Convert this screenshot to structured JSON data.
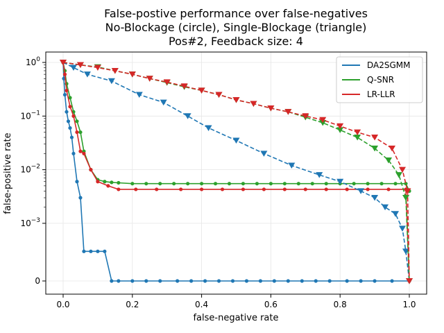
{
  "chart_data": {
    "type": "line",
    "title": [
      "False-postive performance over false-negatives",
      "No-Blockage (circle), Single-Blockage (triangle)",
      "Pos#2, Feedback size: 4"
    ],
    "xlabel": "false-negative rate",
    "ylabel": "false-positive rate",
    "xlim": [
      -0.05,
      1.05
    ],
    "yscale": "symlog",
    "x_ticks": [
      0.0,
      0.2,
      0.4,
      0.6,
      0.8,
      1.0
    ],
    "x_tick_labels": [
      "0.0",
      "0.2",
      "0.4",
      "0.6",
      "0.8",
      "1.0"
    ],
    "y_tick_labels": [
      {
        "value": 1,
        "base": "10",
        "exp": "0"
      },
      {
        "value": 0.1,
        "base": "10",
        "exp": "−1"
      },
      {
        "value": 0.01,
        "base": "10",
        "exp": "−2"
      },
      {
        "value": 0.001,
        "base": "10",
        "exp": "−3"
      },
      {
        "value": 0,
        "plain": "0"
      }
    ],
    "grid": true,
    "legend_position": "top-right",
    "series": [
      {
        "name": "DA2SGMM",
        "color": "#1f77b4",
        "marker": "circle",
        "linestyle": "solid",
        "x": [
          0.0,
          0.002,
          0.005,
          0.01,
          0.015,
          0.02,
          0.025,
          0.03,
          0.04,
          0.05,
          0.06,
          0.08,
          0.1,
          0.12,
          0.14,
          0.16,
          0.2,
          0.24,
          0.28,
          0.33,
          0.37,
          0.41,
          0.45,
          0.49,
          0.53,
          0.57,
          0.61,
          0.65,
          0.69,
          0.73,
          0.77,
          0.82,
          0.86,
          0.9,
          0.95,
          1.0
        ],
        "y": [
          1.0,
          0.5,
          0.25,
          0.12,
          0.08,
          0.06,
          0.04,
          0.02,
          0.006,
          0.003,
          0.0003,
          0.0003,
          0.0003,
          0.0003,
          0.0001,
          0,
          0,
          0,
          0,
          0,
          0,
          0,
          0,
          0,
          0,
          0,
          0,
          0,
          0,
          0,
          0,
          0,
          0,
          0,
          0,
          0
        ]
      },
      {
        "name": "Q-SNR",
        "color": "#2ca02c",
        "marker": "circle",
        "linestyle": "solid",
        "x": [
          0.0,
          0.005,
          0.01,
          0.02,
          0.03,
          0.04,
          0.05,
          0.06,
          0.08,
          0.1,
          0.12,
          0.14,
          0.16,
          0.2,
          0.24,
          0.28,
          0.32,
          0.36,
          0.4,
          0.44,
          0.48,
          0.52,
          0.56,
          0.6,
          0.64,
          0.68,
          0.72,
          0.76,
          0.8,
          0.84,
          0.88,
          0.92,
          0.96,
          0.99,
          1.0
        ],
        "y": [
          1.0,
          0.7,
          0.4,
          0.22,
          0.12,
          0.08,
          0.05,
          0.022,
          0.01,
          0.0065,
          0.006,
          0.0058,
          0.0057,
          0.0055,
          0.0055,
          0.0055,
          0.0055,
          0.0055,
          0.0055,
          0.0055,
          0.0055,
          0.0055,
          0.0055,
          0.0055,
          0.0055,
          0.0055,
          0.0055,
          0.0055,
          0.0055,
          0.0055,
          0.0055,
          0.0055,
          0.0055,
          0.0055,
          0.004
        ]
      },
      {
        "name": "LR-LLR",
        "color": "#d62728",
        "marker": "circle",
        "linestyle": "solid",
        "x": [
          0.0,
          0.005,
          0.01,
          0.02,
          0.03,
          0.04,
          0.05,
          0.06,
          0.08,
          0.1,
          0.13,
          0.16,
          0.21,
          0.27,
          0.34,
          0.4,
          0.46,
          0.52,
          0.58,
          0.64,
          0.7,
          0.76,
          0.82,
          0.88,
          0.94,
          0.99,
          1.0
        ],
        "y": [
          1.0,
          0.6,
          0.3,
          0.15,
          0.1,
          0.05,
          0.022,
          0.02,
          0.01,
          0.006,
          0.005,
          0.0043,
          0.0043,
          0.0043,
          0.0043,
          0.0043,
          0.0043,
          0.0043,
          0.0043,
          0.0043,
          0.0043,
          0.0043,
          0.0043,
          0.0043,
          0.0043,
          0.0043,
          0.0001
        ]
      },
      {
        "name": "DA2SGMM (single-blockage)",
        "color": "#1f77b4",
        "marker": "triangle",
        "linestyle": "dashed",
        "x": [
          0.0,
          0.03,
          0.07,
          0.14,
          0.22,
          0.29,
          0.36,
          0.42,
          0.5,
          0.58,
          0.66,
          0.74,
          0.8,
          0.86,
          0.9,
          0.93,
          0.96,
          0.98,
          0.99,
          1.0
        ],
        "y": [
          1.0,
          0.8,
          0.6,
          0.45,
          0.25,
          0.18,
          0.1,
          0.06,
          0.035,
          0.02,
          0.012,
          0.008,
          0.006,
          0.004,
          0.003,
          0.002,
          0.0015,
          0.0008,
          0.0003,
          5e-05
        ]
      },
      {
        "name": "Q-SNR (single-blockage)",
        "color": "#2ca02c",
        "marker": "triangle",
        "linestyle": "dashed",
        "x": [
          0.0,
          0.05,
          0.1,
          0.15,
          0.2,
          0.25,
          0.3,
          0.35,
          0.4,
          0.45,
          0.5,
          0.55,
          0.6,
          0.65,
          0.7,
          0.75,
          0.8,
          0.85,
          0.9,
          0.94,
          0.97,
          0.99,
          1.0
        ],
        "y": [
          1.0,
          0.9,
          0.82,
          0.7,
          0.6,
          0.5,
          0.42,
          0.35,
          0.3,
          0.25,
          0.2,
          0.17,
          0.14,
          0.12,
          0.095,
          0.075,
          0.055,
          0.04,
          0.025,
          0.015,
          0.008,
          0.003,
          0.0001
        ]
      },
      {
        "name": "LR-LLR (single-blockage)",
        "color": "#d62728",
        "marker": "triangle",
        "linestyle": "dashed",
        "x": [
          0.0,
          0.05,
          0.1,
          0.15,
          0.2,
          0.25,
          0.3,
          0.35,
          0.4,
          0.45,
          0.5,
          0.55,
          0.6,
          0.65,
          0.7,
          0.75,
          0.8,
          0.85,
          0.9,
          0.95,
          0.98,
          0.995,
          1.0
        ],
        "y": [
          1.0,
          0.9,
          0.8,
          0.7,
          0.6,
          0.5,
          0.43,
          0.36,
          0.3,
          0.25,
          0.2,
          0.17,
          0.14,
          0.12,
          0.1,
          0.085,
          0.065,
          0.05,
          0.04,
          0.025,
          0.01,
          0.004,
          0.0001
        ]
      }
    ],
    "legend": [
      "DA2SGMM",
      "Q-SNR",
      "LR-LLR"
    ]
  }
}
